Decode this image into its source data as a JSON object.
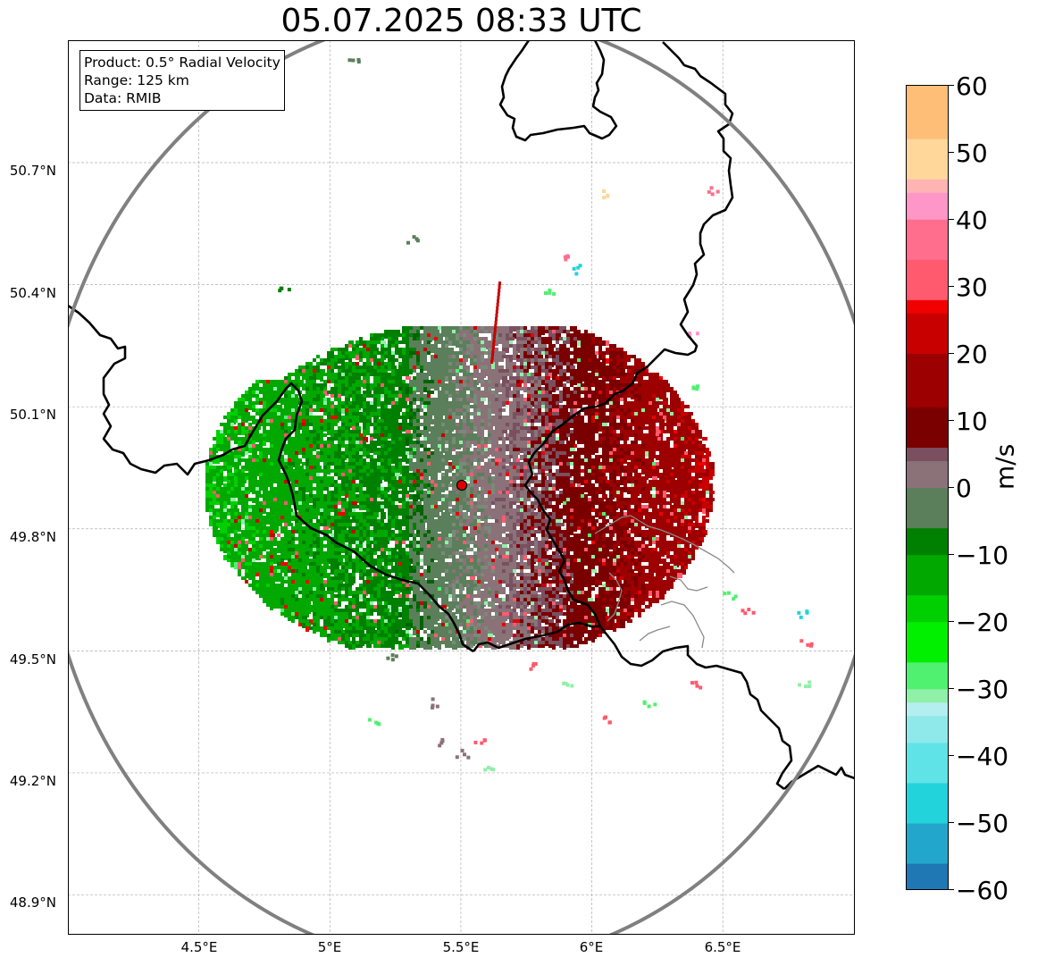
{
  "title": "05.07.2025 08:33 UTC",
  "info_box": {
    "product": "Product: 0.5° Radial Velocity",
    "range": "Range: 125 km",
    "data": "Data: RMIB"
  },
  "map": {
    "lon_range": [
      4.0,
      7.0
    ],
    "lat_range": [
      48.8,
      51.0
    ],
    "lat_ticks": [
      "48.9°N",
      "49.2°N",
      "49.5°N",
      "49.8°N",
      "50.1°N",
      "50.4°N",
      "50.7°N"
    ],
    "lon_ticks": [
      "4.5°E",
      "5°E",
      "5.5°E",
      "6°E",
      "6.5°E"
    ],
    "grid": true,
    "radar_site": {
      "lon": 5.505,
      "lat": 49.914
    },
    "range_ring_km": 125
  },
  "colorbar": {
    "label": "m/s",
    "ticks": [
      "60",
      "50",
      "40",
      "30",
      "20",
      "10",
      "0",
      "−10",
      "−20",
      "−30",
      "−40",
      "−50",
      "−60"
    ],
    "min": -60,
    "max": 60,
    "colors": {
      "approaching_strong": "#1f77b4",
      "approaching_cyan": "#22d3dc",
      "approaching_light_cyan": "#b4eef0",
      "approaching_bright_green": "#00e600",
      "approaching_green": "#008000",
      "approaching_dark_green": "#006400",
      "near_zero_green": "#5a7f5a",
      "near_zero_mauve": "#8a7278",
      "receding_dark_red": "#7a0000",
      "receding_red": "#f00000",
      "receding_pink": "#ff5a6e",
      "receding_light_pink": "#ff96c8",
      "receding_peach": "#ffd79a",
      "receding_orange": "#ff9a50"
    }
  },
  "colors": {
    "border": "#000000",
    "range_ring": "#808080",
    "grid": "#b0b0b0",
    "radar_marker": "#e00000"
  }
}
